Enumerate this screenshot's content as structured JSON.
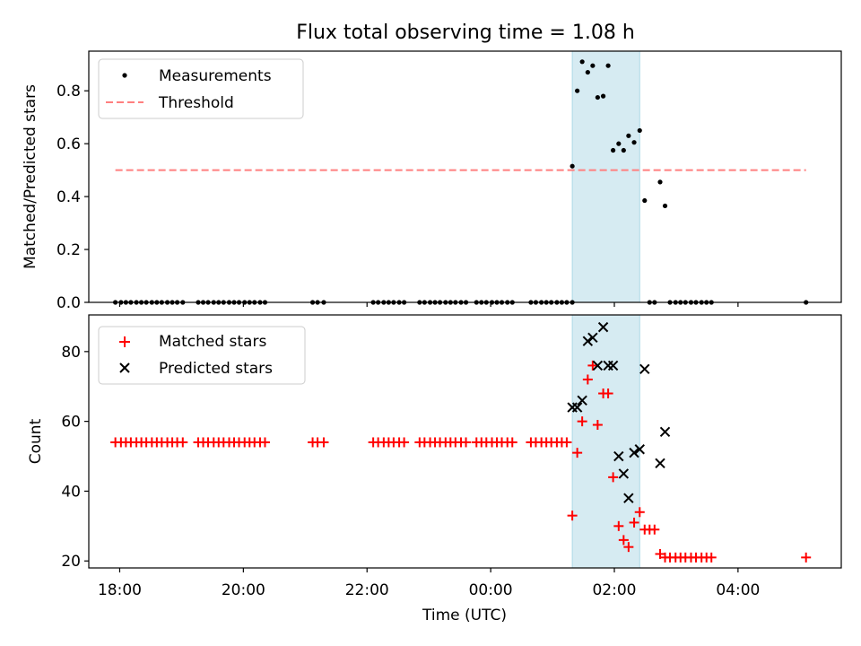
{
  "chart_data": [
    {
      "type": "scatter",
      "title": "Flux total observing time = 1.08 h",
      "xlabel": "",
      "ylabel": "Matched/Predicted stars",
      "ylim": [
        0.0,
        0.95
      ],
      "yticks": [
        "0.0",
        "0.2",
        "0.4",
        "0.6",
        "0.8"
      ],
      "yticks_values": [
        0.0,
        0.2,
        0.4,
        0.6,
        0.8
      ],
      "xlim_hours": [
        17.5,
        29.67
      ],
      "legend_position": "upper-left",
      "grid": false,
      "shaded_region": {
        "x0": 25.32,
        "x1": 26.41,
        "color": "#add8e6"
      },
      "series": [
        {
          "name": "Measurements",
          "marker": "dot",
          "color": "#000000",
          "x": [
            17.93,
            18.02,
            18.1,
            18.18,
            18.27,
            18.35,
            18.43,
            18.52,
            18.6,
            18.68,
            18.77,
            18.85,
            18.93,
            19.02,
            19.27,
            19.35,
            19.43,
            19.52,
            19.6,
            19.68,
            19.77,
            19.85,
            19.93,
            20.02,
            20.1,
            20.18,
            20.27,
            20.35,
            21.12,
            21.2,
            21.3,
            22.1,
            22.18,
            22.27,
            22.35,
            22.43,
            22.52,
            22.6,
            22.85,
            22.93,
            23.02,
            23.1,
            23.18,
            23.27,
            23.35,
            23.43,
            23.52,
            23.6,
            23.77,
            23.85,
            23.93,
            24.02,
            24.1,
            24.18,
            24.27,
            24.35,
            24.65,
            24.73,
            24.82,
            24.9,
            24.98,
            25.07,
            25.15,
            25.23,
            25.32,
            25.32,
            25.4,
            25.48,
            25.57,
            25.65,
            25.73,
            25.82,
            25.9,
            25.98,
            26.07,
            26.15,
            26.23,
            26.32,
            26.41,
            26.49,
            26.57,
            26.65,
            26.74,
            26.82,
            26.9,
            26.99,
            27.07,
            27.15,
            27.24,
            27.32,
            27.41,
            27.49,
            27.57,
            29.1
          ],
          "y": [
            0,
            0,
            0,
            0,
            0,
            0,
            0,
            0,
            0,
            0,
            0,
            0,
            0,
            0,
            0,
            0,
            0,
            0,
            0,
            0,
            0,
            0,
            0,
            0,
            0,
            0,
            0,
            0,
            0,
            0,
            0,
            0,
            0,
            0,
            0,
            0,
            0,
            0,
            0,
            0,
            0,
            0,
            0,
            0,
            0,
            0,
            0,
            0,
            0,
            0,
            0,
            0,
            0,
            0,
            0,
            0,
            0,
            0,
            0,
            0,
            0,
            0,
            0,
            0,
            0.515,
            0,
            0.8,
            0.91,
            0.87,
            0.895,
            0.775,
            0.78,
            0.895,
            0.575,
            0.6,
            0.575,
            0.63,
            0.605,
            0.65,
            0.385,
            0,
            0,
            0.455,
            0.365,
            0,
            0,
            0,
            0,
            0,
            0,
            0,
            0,
            0,
            0
          ]
        },
        {
          "name": "Threshold",
          "marker": "dashed-line",
          "color": "#ff7f7f",
          "x": [
            17.93,
            29.1
          ],
          "y": [
            0.5,
            0.5
          ]
        }
      ]
    },
    {
      "type": "scatter",
      "title": "",
      "xlabel": "Time (UTC)",
      "ylabel": "Count",
      "ylim": [
        18,
        90.5
      ],
      "yticks": [
        "20",
        "40",
        "60",
        "80"
      ],
      "yticks_values": [
        20,
        40,
        60,
        80
      ],
      "xlim_hours": [
        17.5,
        29.67
      ],
      "xticks": [
        "18:00",
        "20:00",
        "22:00",
        "00:00",
        "02:00",
        "04:00"
      ],
      "xticks_values": [
        18,
        20,
        22,
        24,
        26,
        28
      ],
      "legend_position": "upper-left",
      "grid": false,
      "shaded_region": {
        "x0": 25.32,
        "x1": 26.41,
        "color": "#add8e6"
      },
      "series": [
        {
          "name": "Matched stars",
          "marker": "plus",
          "color": "#ff0000",
          "x": [
            17.93,
            18.02,
            18.1,
            18.18,
            18.27,
            18.35,
            18.43,
            18.52,
            18.6,
            18.68,
            18.77,
            18.85,
            18.93,
            19.02,
            19.27,
            19.35,
            19.43,
            19.52,
            19.6,
            19.68,
            19.77,
            19.85,
            19.93,
            20.02,
            20.1,
            20.18,
            20.27,
            20.35,
            21.12,
            21.2,
            21.3,
            22.1,
            22.18,
            22.27,
            22.35,
            22.43,
            22.52,
            22.6,
            22.85,
            22.93,
            23.02,
            23.1,
            23.18,
            23.27,
            23.35,
            23.43,
            23.52,
            23.6,
            23.77,
            23.85,
            23.93,
            24.02,
            24.1,
            24.18,
            24.27,
            24.35,
            24.65,
            24.73,
            24.82,
            24.9,
            24.98,
            25.07,
            25.15,
            25.23,
            25.32,
            25.4,
            25.48,
            25.57,
            25.65,
            25.73,
            25.82,
            25.9,
            25.98,
            26.07,
            26.15,
            26.23,
            26.32,
            26.41,
            26.49,
            26.57,
            26.65,
            26.74,
            26.82,
            26.9,
            26.99,
            27.07,
            27.15,
            27.24,
            27.32,
            27.41,
            27.49,
            27.57,
            29.1
          ],
          "y": [
            54,
            54,
            54,
            54,
            54,
            54,
            54,
            54,
            54,
            54,
            54,
            54,
            54,
            54,
            54,
            54,
            54,
            54,
            54,
            54,
            54,
            54,
            54,
            54,
            54,
            54,
            54,
            54,
            54,
            54,
            54,
            54,
            54,
            54,
            54,
            54,
            54,
            54,
            54,
            54,
            54,
            54,
            54,
            54,
            54,
            54,
            54,
            54,
            54,
            54,
            54,
            54,
            54,
            54,
            54,
            54,
            54,
            54,
            54,
            54,
            54,
            54,
            54,
            54,
            33,
            51,
            60,
            72,
            76,
            59,
            68,
            68,
            44,
            30,
            26,
            24,
            31,
            34,
            29,
            29,
            29,
            22,
            21,
            21,
            21,
            21,
            21,
            21,
            21,
            21,
            21,
            21,
            21
          ]
        },
        {
          "name": "Predicted stars",
          "marker": "x",
          "color": "#000000",
          "x": [
            25.32,
            25.4,
            25.48,
            25.57,
            25.65,
            25.73,
            25.82,
            25.9,
            25.98,
            26.07,
            26.15,
            26.23,
            26.32,
            26.41,
            26.49,
            26.74,
            26.82
          ],
          "y": [
            64,
            64,
            66,
            83,
            84,
            76,
            87,
            76,
            76,
            50,
            45,
            38,
            51,
            52,
            75,
            48,
            57
          ]
        }
      ]
    }
  ]
}
